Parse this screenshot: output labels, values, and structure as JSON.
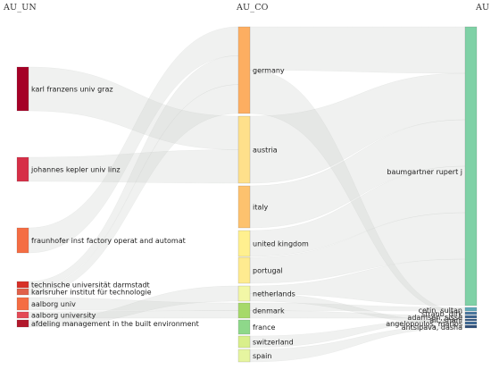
{
  "headers": {
    "left": "AU_UN",
    "middle": "AU_CO",
    "right": "AU"
  },
  "chart_data": {
    "type": "sankey",
    "columns": [
      "AU_UN",
      "AU_CO",
      "AU"
    ],
    "nodes": {
      "AU_UN": [
        {
          "label": "karl franzens univ graz",
          "color": "#a50026"
        },
        {
          "label": "johannes kepler univ linz",
          "color": "#d62f47"
        },
        {
          "label": "fraunhofer inst factory operat and automat",
          "color": "#f46d43"
        },
        {
          "label": "technische universität darmstadt",
          "color": "#d73027"
        },
        {
          "label": "karlsruher institut für technologie",
          "color": "#e0614a"
        },
        {
          "label": "aalborg univ",
          "color": "#f46d43"
        },
        {
          "label": "aalborg university",
          "color": "#e34a56"
        },
        {
          "label": "afdeling management in the built environment",
          "color": "#b2182b"
        }
      ],
      "AU_CO": [
        {
          "label": "germany",
          "color": "#fdae61"
        },
        {
          "label": "austria",
          "color": "#fee08b"
        },
        {
          "label": "italy",
          "color": "#fdc26e"
        },
        {
          "label": "united kingdom",
          "color": "#fff08f"
        },
        {
          "label": "portugal",
          "color": "#feeb90"
        },
        {
          "label": "netherlands",
          "color": "#f2f7a6"
        },
        {
          "label": "denmark",
          "color": "#a6d96a"
        },
        {
          "label": "france",
          "color": "#8ed88a"
        },
        {
          "label": "switzerland",
          "color": "#d9ef8b"
        },
        {
          "label": "spain",
          "color": "#e6f5a0"
        }
      ],
      "AU": [
        {
          "label": "baumgartner rupert j",
          "color": "#7fd1a6"
        },
        {
          "label": "cetin, sultan",
          "color": "#5fa8b8"
        },
        {
          "label": "straub, dirk",
          "color": "#4a78a0"
        },
        {
          "label": "adamsen, sisse",
          "color": "#3d6590"
        },
        {
          "label": "alt, shani",
          "color": "#365a85"
        },
        {
          "label": "angelopoulos, marios",
          "color": "#3f6a96"
        },
        {
          "label": "antsipava, dasha",
          "color": "#2f4f7a"
        }
      ]
    },
    "links": [
      {
        "source": "karl franzens univ graz",
        "target": "austria"
      },
      {
        "source": "johannes kepler univ linz",
        "target": "austria"
      },
      {
        "source": "fraunhofer inst factory operat and automat",
        "target": "germany"
      },
      {
        "source": "technische universität darmstadt",
        "target": "germany"
      },
      {
        "source": "karlsruher institut für technologie",
        "target": "germany"
      },
      {
        "source": "aalborg univ",
        "target": "denmark"
      },
      {
        "source": "aalborg university",
        "target": "denmark"
      },
      {
        "source": "afdeling management in the built environment",
        "target": "netherlands"
      },
      {
        "source": "germany",
        "target": "baumgartner rupert j"
      },
      {
        "source": "austria",
        "target": "baumgartner rupert j"
      },
      {
        "source": "italy",
        "target": "baumgartner rupert j"
      },
      {
        "source": "united kingdom",
        "target": "baumgartner rupert j"
      },
      {
        "source": "portugal",
        "target": "baumgartner rupert j"
      },
      {
        "source": "netherlands",
        "target": "baumgartner rupert j"
      },
      {
        "source": "denmark",
        "target": "cetin, sultan"
      },
      {
        "source": "germany",
        "target": "straub, dirk"
      },
      {
        "source": "denmark",
        "target": "adamsen, sisse"
      },
      {
        "source": "switzerland",
        "target": "alt, shani"
      },
      {
        "source": "netherlands",
        "target": "angelopoulos, marios"
      },
      {
        "source": "spain",
        "target": "antsipava, dasha"
      }
    ]
  }
}
